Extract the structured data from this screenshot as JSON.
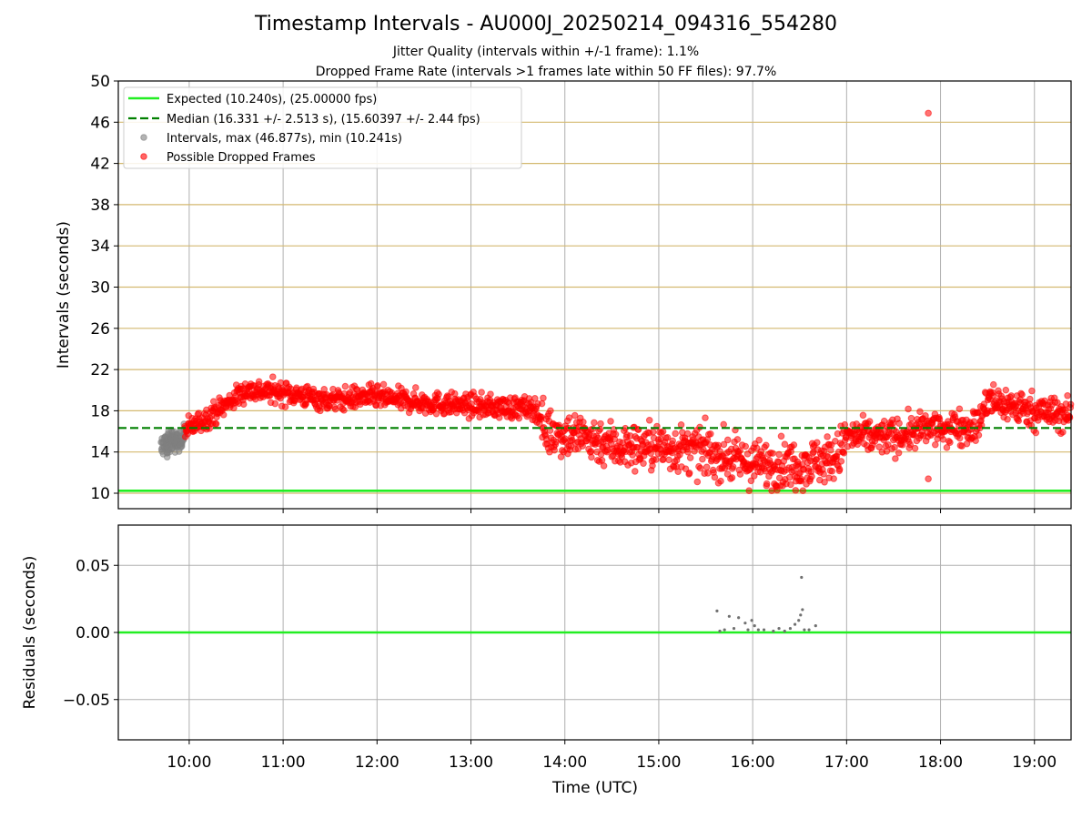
{
  "chart_data": {
    "title": "Timestamp Intervals - AU000J_20250214_094316_554280",
    "subtitles": [
      "Jitter Quality (intervals within +/-1 frame): 1.1%",
      "Dropped Frame Rate (intervals >1 frames late within 50 FF files): 97.7%"
    ],
    "xlabel": "Time (UTC)",
    "x_ticks": [
      "10:00",
      "11:00",
      "12:00",
      "13:00",
      "14:00",
      "15:00",
      "16:00",
      "17:00",
      "18:00",
      "19:00"
    ],
    "x_range_hours": [
      9.245,
      19.39
    ],
    "grid": true,
    "panels": [
      {
        "type": "scatter",
        "ylabel": "Intervals (seconds)",
        "ylim": [
          8.5,
          50
        ],
        "y_ticks": [
          10,
          14,
          18,
          22,
          26,
          30,
          34,
          38,
          42,
          46,
          50
        ],
        "legend_position": "top-left",
        "legend": [
          {
            "label": "Expected (10.240s), (25.00000 fps)",
            "kind": "line",
            "color": "#22ee22"
          },
          {
            "label": "Median (16.331 +/- 2.513 s), (15.60397 +/- 2.44 fps)",
            "kind": "dashed",
            "color": "#008000"
          },
          {
            "label": "Intervals, max (46.877s), min (10.241s)",
            "kind": "marker",
            "color": "#808080"
          },
          {
            "label": "Possible Dropped Frames",
            "kind": "marker",
            "color": "#ff0000"
          }
        ],
        "reference_lines": {
          "expected": 10.24,
          "median": 16.331
        },
        "series": [
          {
            "name": "Possible Dropped Frames",
            "color": "#ff0000",
            "trend": [
              [
                9.95,
                16.0
              ],
              [
                10.3,
                18.0
              ],
              [
                10.6,
                20.0
              ],
              [
                11.0,
                19.8
              ],
              [
                11.5,
                19.0
              ],
              [
                11.9,
                19.4
              ],
              [
                12.5,
                18.8
              ],
              [
                13.0,
                18.5
              ],
              [
                13.7,
                18.2
              ],
              [
                13.8,
                16.0
              ],
              [
                14.2,
                15.5
              ],
              [
                14.6,
                14.5
              ],
              [
                15.0,
                14.5
              ],
              [
                15.5,
                14.0
              ],
              [
                16.0,
                12.8
              ],
              [
                16.5,
                12.8
              ],
              [
                16.9,
                13.5
              ],
              [
                17.0,
                15.5
              ],
              [
                17.5,
                15.5
              ],
              [
                18.0,
                16.5
              ],
              [
                18.4,
                16.5
              ],
              [
                18.5,
                19.0
              ],
              [
                19.0,
                18.0
              ],
              [
                19.39,
                17.5
              ]
            ],
            "outliers": [
              [
                17.87,
                46.877
              ],
              [
                17.87,
                11.4
              ]
            ]
          },
          {
            "name": "Intervals",
            "color": "#808080",
            "trend": [
              [
                9.7,
                14.5
              ],
              [
                9.95,
                15.5
              ]
            ],
            "range": [
              12.0,
              17.0
            ]
          }
        ]
      },
      {
        "type": "scatter",
        "ylabel": "Residuals (seconds)",
        "ylim": [
          -0.08,
          0.08
        ],
        "y_ticks": [
          "−0.05",
          "0.00",
          "0.05"
        ],
        "y_tick_values": [
          -0.05,
          0.0,
          0.05
        ],
        "reference_lines": {
          "zero": 0.0
        },
        "series": [
          {
            "name": "Residuals",
            "color": "#707070",
            "points": [
              [
                15.62,
                0.016
              ],
              [
                15.65,
                0.001
              ],
              [
                15.7,
                0.002
              ],
              [
                15.75,
                0.012
              ],
              [
                15.8,
                0.003
              ],
              [
                15.85,
                0.011
              ],
              [
                15.92,
                0.007
              ],
              [
                15.95,
                0.002
              ],
              [
                15.99,
                0.009
              ],
              [
                16.02,
                0.005
              ],
              [
                16.06,
                0.002
              ],
              [
                16.12,
                0.002
              ],
              [
                16.22,
                0.001
              ],
              [
                16.28,
                0.003
              ],
              [
                16.34,
                0.001
              ],
              [
                16.4,
                0.003
              ],
              [
                16.45,
                0.006
              ],
              [
                16.49,
                0.009
              ],
              [
                16.51,
                0.013
              ],
              [
                16.52,
                0.041
              ],
              [
                16.53,
                0.017
              ],
              [
                16.55,
                0.002
              ],
              [
                16.6,
                0.002
              ],
              [
                16.67,
                0.005
              ]
            ]
          }
        ]
      }
    ]
  },
  "colors": {
    "expected_line": "#22ee22",
    "median_line": "#008000",
    "dropped": "#ff0000",
    "interval": "#808080",
    "top_grid_horizontal": "#d4b970",
    "grid": "#b0b0b0"
  }
}
